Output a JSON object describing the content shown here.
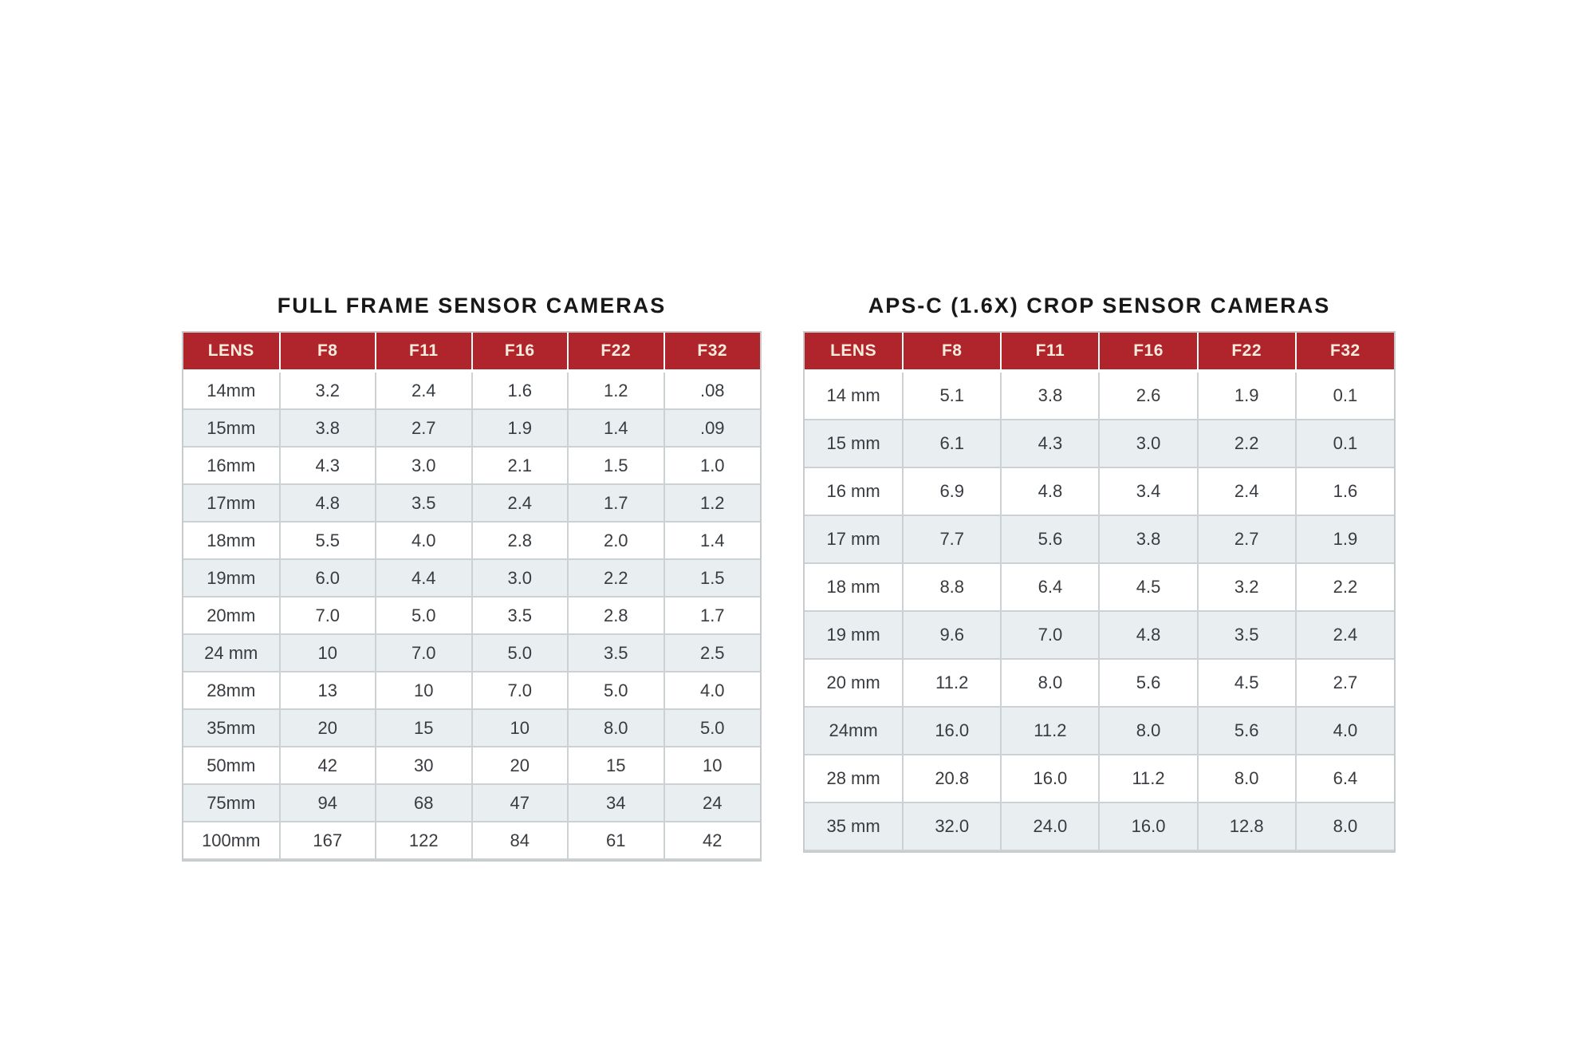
{
  "colors": {
    "page_bg": "#ffffff",
    "header_bg": "#b0242c",
    "header_text": "#f4ecdd",
    "row_bg": "#ffffff",
    "row_alt_bg": "#e9eef1",
    "border": "#c6cbce",
    "border_inner": "#ccd1d4",
    "cell_text": "#383c40",
    "title_text": "#181818"
  },
  "chart_data": [
    {
      "type": "table",
      "title": "FULL FRAME SENSOR CAMERAS",
      "columns": [
        "LENS",
        "F8",
        "F11",
        "F16",
        "F22",
        "F32"
      ],
      "rows": [
        [
          "14mm",
          "3.2",
          "2.4",
          "1.6",
          "1.2",
          ".08"
        ],
        [
          "15mm",
          "3.8",
          "2.7",
          "1.9",
          "1.4",
          ".09"
        ],
        [
          "16mm",
          "4.3",
          "3.0",
          "2.1",
          "1.5",
          "1.0"
        ],
        [
          "17mm",
          "4.8",
          "3.5",
          "2.4",
          "1.7",
          "1.2"
        ],
        [
          "18mm",
          "5.5",
          "4.0",
          "2.8",
          "2.0",
          "1.4"
        ],
        [
          "19mm",
          "6.0",
          "4.4",
          "3.0",
          "2.2",
          "1.5"
        ],
        [
          "20mm",
          "7.0",
          "5.0",
          "3.5",
          "2.8",
          "1.7"
        ],
        [
          "24 mm",
          "10",
          "7.0",
          "5.0",
          "3.5",
          "2.5"
        ],
        [
          "28mm",
          "13",
          "10",
          "7.0",
          "5.0",
          "4.0"
        ],
        [
          "35mm",
          "20",
          "15",
          "10",
          "8.0",
          "5.0"
        ],
        [
          "50mm",
          "42",
          "30",
          "20",
          "15",
          "10"
        ],
        [
          "75mm",
          "94",
          "68",
          "47",
          "34",
          "24"
        ],
        [
          "100mm",
          "167",
          "122",
          "84",
          "61",
          "42"
        ]
      ]
    },
    {
      "type": "table",
      "title": "APS-C (1.6X) CROP SENSOR CAMERAS",
      "columns": [
        "LENS",
        "F8",
        "F11",
        "F16",
        "F22",
        "F32"
      ],
      "rows": [
        [
          "14 mm",
          "5.1",
          "3.8",
          "2.6",
          "1.9",
          "0.1"
        ],
        [
          "15 mm",
          "6.1",
          "4.3",
          "3.0",
          "2.2",
          "0.1"
        ],
        [
          "16 mm",
          "6.9",
          "4.8",
          "3.4",
          "2.4",
          "1.6"
        ],
        [
          "17 mm",
          "7.7",
          "5.6",
          "3.8",
          "2.7",
          "1.9"
        ],
        [
          "18 mm",
          "8.8",
          "6.4",
          "4.5",
          "3.2",
          "2.2"
        ],
        [
          "19 mm",
          "9.6",
          "7.0",
          "4.8",
          "3.5",
          "2.4"
        ],
        [
          "20 mm",
          "11.2",
          "8.0",
          "5.6",
          "4.5",
          "2.7"
        ],
        [
          "24mm",
          "16.0",
          "11.2",
          "8.0",
          "5.6",
          "4.0"
        ],
        [
          "28 mm",
          "20.8",
          "16.0",
          "11.2",
          "8.0",
          "6.4"
        ],
        [
          "35 mm",
          "32.0",
          "24.0",
          "16.0",
          "12.8",
          "8.0"
        ]
      ]
    }
  ]
}
